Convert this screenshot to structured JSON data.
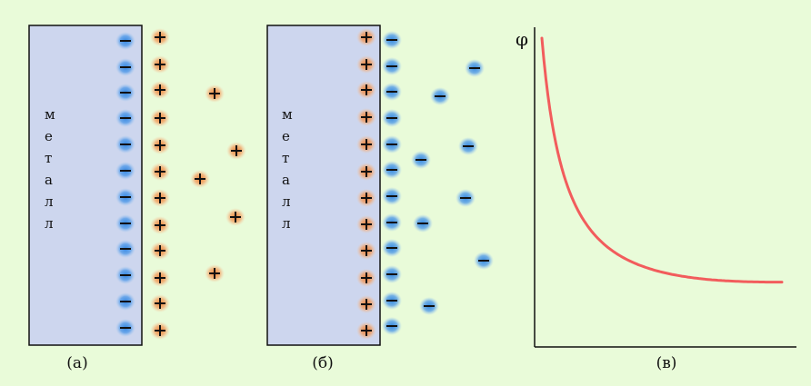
{
  "colors": {
    "background": "#e9fbd9",
    "metal_fill": "#cdd6ee",
    "metal_stroke": "#111111",
    "negative_ion": "#2b82e0",
    "positive_ion": "#f07a2a",
    "curve": "#f25c5c",
    "axis": "#111111"
  },
  "panels": [
    {
      "id": "a",
      "caption": "(а)",
      "metal_letters": [
        "м",
        "е",
        "т",
        "а",
        "л",
        "л"
      ],
      "surface_charge": "-",
      "solution_charge": "+",
      "counter_charge": "+",
      "wall_count": 12,
      "layer_count": 12,
      "scattered_count": 5
    },
    {
      "id": "b",
      "caption": "(б)",
      "metal_letters": [
        "м",
        "е",
        "т",
        "а",
        "л",
        "л"
      ],
      "surface_charge": "+",
      "solution_charge": "-",
      "counter_charge": "-",
      "wall_count": 12,
      "layer_count": 12,
      "scattered_count": 8
    }
  ],
  "graph": {
    "caption": "(в)",
    "y_axis_label": "φ",
    "curve_shape": "decreasing-hyperbolic"
  },
  "icon_names": {
    "negative": "minus-ion-icon",
    "positive": "plus-ion-icon"
  }
}
